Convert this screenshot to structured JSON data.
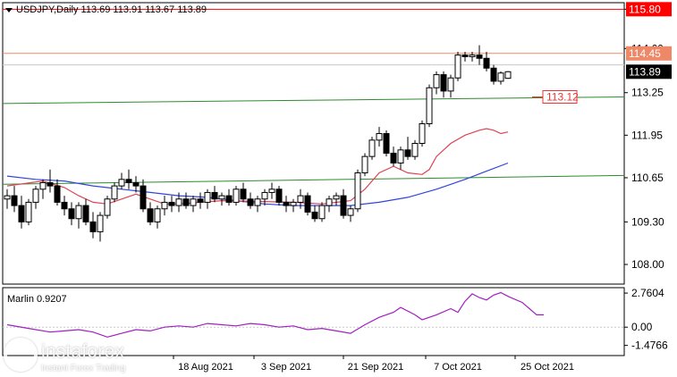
{
  "chart_data": {
    "type": "candlestick",
    "symbol_header": "USDJPY,Daily  113.69 113.91 113.67 113.89",
    "ylim": [
      107.4,
      116.0
    ],
    "y_ticks": [
      "108.00",
      "109.30",
      "110.65",
      "111.95",
      "113.25",
      "114.60",
      "115.80"
    ],
    "x_ticks": [
      "18 Aug 2021",
      "3 Sep 2021",
      "21 Sep 2021",
      "7 Oct 2021",
      "25 Oct 2021"
    ],
    "price_tags": [
      {
        "value": 115.8,
        "label": "115.80",
        "color": "#ff0000"
      },
      {
        "value": 114.45,
        "label": "114.45",
        "color": "#ee8866"
      },
      {
        "value": 113.89,
        "label": "113.89",
        "color": "#000000"
      }
    ],
    "annotation": {
      "value": 113.12,
      "label": "113.12"
    },
    "levels": [
      {
        "name": "resistance",
        "value": 115.8,
        "color": "#ff0000"
      },
      {
        "name": "target",
        "value": 114.45,
        "color": "#ee8866"
      },
      {
        "name": "grey",
        "value": 114.1,
        "color": "#c8c8c8"
      }
    ],
    "trendlines": [
      {
        "from_index": 0,
        "from_value": 112.92,
        "to_index": 70,
        "to_value": 113.12,
        "color": "#2e8b2e"
      },
      {
        "from_index": 0,
        "from_value": 110.45,
        "to_index": 70,
        "to_value": 110.72,
        "color": "#2e8b2e"
      }
    ],
    "candles": [
      [
        110.0,
        110.3,
        109.7,
        110.1
      ],
      [
        110.1,
        110.4,
        109.6,
        109.8
      ],
      [
        109.8,
        110.1,
        109.1,
        109.3
      ],
      [
        109.3,
        110.0,
        109.2,
        109.9
      ],
      [
        109.9,
        110.4,
        109.7,
        110.3
      ],
      [
        110.3,
        110.6,
        110.0,
        110.5
      ],
      [
        110.5,
        110.9,
        110.2,
        110.4
      ],
      [
        110.4,
        110.6,
        109.8,
        109.9
      ],
      [
        109.9,
        110.1,
        109.5,
        109.7
      ],
      [
        109.7,
        109.9,
        109.2,
        109.4
      ],
      [
        109.4,
        109.9,
        109.1,
        109.8
      ],
      [
        109.8,
        110.0,
        109.2,
        109.3
      ],
      [
        109.3,
        109.6,
        108.8,
        109.0
      ],
      [
        109.0,
        109.6,
        108.7,
        109.5
      ],
      [
        109.5,
        110.1,
        109.4,
        110.0
      ],
      [
        110.0,
        110.5,
        109.9,
        110.4
      ],
      [
        110.4,
        110.8,
        110.3,
        110.6
      ],
      [
        110.6,
        110.9,
        110.3,
        110.5
      ],
      [
        110.5,
        110.7,
        110.2,
        110.4
      ],
      [
        110.4,
        110.6,
        109.6,
        109.7
      ],
      [
        109.7,
        109.9,
        109.2,
        109.3
      ],
      [
        109.3,
        109.8,
        109.1,
        109.7
      ],
      [
        109.7,
        110.1,
        109.5,
        109.9
      ],
      [
        109.9,
        110.1,
        109.6,
        109.8
      ],
      [
        109.8,
        110.2,
        109.6,
        110.0
      ],
      [
        110.0,
        110.2,
        109.7,
        109.8
      ],
      [
        109.8,
        110.1,
        109.6,
        110.0
      ],
      [
        110.0,
        110.2,
        109.7,
        109.9
      ],
      [
        109.9,
        110.3,
        109.7,
        110.2
      ],
      [
        110.2,
        110.4,
        109.9,
        110.0
      ],
      [
        110.0,
        110.2,
        109.8,
        110.1
      ],
      [
        110.1,
        110.3,
        109.8,
        109.9
      ],
      [
        109.9,
        110.4,
        109.8,
        110.3
      ],
      [
        110.3,
        110.5,
        109.9,
        110.0
      ],
      [
        110.0,
        110.2,
        109.7,
        109.8
      ],
      [
        109.8,
        110.1,
        109.6,
        110.0
      ],
      [
        110.0,
        110.3,
        109.8,
        110.2
      ],
      [
        110.2,
        110.5,
        110.0,
        110.3
      ],
      [
        110.3,
        110.4,
        109.8,
        109.9
      ],
      [
        109.9,
        110.1,
        109.6,
        109.8
      ],
      [
        109.8,
        110.0,
        109.6,
        109.9
      ],
      [
        109.9,
        110.3,
        109.7,
        110.1
      ],
      [
        110.1,
        110.2,
        109.5,
        109.6
      ],
      [
        109.6,
        109.8,
        109.3,
        109.4
      ],
      [
        109.4,
        109.9,
        109.3,
        109.8
      ],
      [
        109.8,
        110.1,
        109.6,
        110.0
      ],
      [
        110.0,
        110.2,
        109.8,
        110.1
      ],
      [
        110.1,
        110.3,
        109.4,
        109.5
      ],
      [
        109.5,
        109.8,
        109.3,
        109.7
      ],
      [
        109.7,
        110.9,
        109.6,
        110.8
      ],
      [
        110.8,
        111.4,
        110.7,
        111.3
      ],
      [
        111.3,
        111.9,
        111.2,
        111.8
      ],
      [
        111.8,
        112.2,
        111.6,
        112.0
      ],
      [
        112.0,
        112.1,
        111.3,
        111.4
      ],
      [
        111.4,
        111.6,
        111.0,
        111.1
      ],
      [
        111.1,
        111.6,
        110.9,
        111.5
      ],
      [
        111.5,
        111.9,
        111.2,
        111.3
      ],
      [
        111.3,
        111.8,
        111.2,
        111.7
      ],
      [
        111.7,
        112.4,
        111.6,
        112.3
      ],
      [
        112.3,
        113.5,
        112.2,
        113.4
      ],
      [
        113.4,
        113.9,
        113.2,
        113.8
      ],
      [
        113.8,
        113.9,
        113.1,
        113.3
      ],
      [
        113.3,
        113.8,
        113.1,
        113.7
      ],
      [
        113.7,
        114.5,
        113.6,
        114.4
      ],
      [
        114.4,
        114.5,
        114.2,
        114.35
      ],
      [
        114.35,
        114.5,
        114.2,
        114.4
      ],
      [
        114.4,
        114.7,
        114.1,
        114.3
      ],
      [
        114.3,
        114.5,
        113.9,
        114.0
      ],
      [
        114.0,
        114.1,
        113.5,
        113.6
      ],
      [
        113.6,
        113.9,
        113.5,
        113.85
      ],
      [
        113.69,
        113.91,
        113.67,
        113.89
      ]
    ],
    "ma_red": [
      [
        0,
        110.4
      ],
      [
        5,
        110.55
      ],
      [
        8,
        110.35
      ],
      [
        10,
        110.1
      ],
      [
        12,
        109.9
      ],
      [
        14,
        109.85
      ],
      [
        16,
        110.0
      ],
      [
        18,
        110.15
      ],
      [
        20,
        110.0
      ],
      [
        22,
        109.85
      ],
      [
        24,
        109.85
      ],
      [
        30,
        109.95
      ],
      [
        40,
        109.9
      ],
      [
        44,
        109.85
      ],
      [
        48,
        109.95
      ],
      [
        50,
        110.3
      ],
      [
        52,
        110.8
      ],
      [
        54,
        111.0
      ],
      [
        56,
        110.8
      ],
      [
        58,
        110.75
      ],
      [
        59,
        110.9
      ],
      [
        60,
        111.3
      ],
      [
        62,
        111.7
      ],
      [
        64,
        111.95
      ],
      [
        66,
        112.1
      ],
      [
        67,
        112.15
      ],
      [
        68,
        112.1
      ],
      [
        69,
        112.0
      ],
      [
        70,
        112.05
      ]
    ],
    "ma_blue": [
      [
        0,
        110.7
      ],
      [
        4,
        110.6
      ],
      [
        8,
        110.55
      ],
      [
        12,
        110.4
      ],
      [
        16,
        110.3
      ],
      [
        20,
        110.2
      ],
      [
        24,
        110.1
      ],
      [
        28,
        110.05
      ],
      [
        32,
        109.95
      ],
      [
        36,
        109.85
      ],
      [
        40,
        109.8
      ],
      [
        44,
        109.8
      ],
      [
        48,
        109.8
      ],
      [
        52,
        109.9
      ],
      [
        56,
        110.05
      ],
      [
        60,
        110.3
      ],
      [
        64,
        110.6
      ],
      [
        67,
        110.85
      ],
      [
        70,
        111.1
      ]
    ],
    "indicator": {
      "name": "Marlin",
      "value_label": "Marlin 0.9207",
      "ylim": [
        -2.3,
        3.2
      ],
      "ticks": [
        "2.7604",
        "0.00",
        "-1.4766"
      ],
      "values": [
        [
          0,
          0.2
        ],
        [
          3,
          -0.1
        ],
        [
          6,
          -0.4
        ],
        [
          8,
          -0.3
        ],
        [
          10,
          -0.2
        ],
        [
          12,
          -0.4
        ],
        [
          14,
          -0.8
        ],
        [
          16,
          -0.5
        ],
        [
          18,
          -0.2
        ],
        [
          20,
          -0.3
        ],
        [
          22,
          0.0
        ],
        [
          24,
          0.1
        ],
        [
          26,
          0.0
        ],
        [
          28,
          0.3
        ],
        [
          30,
          0.2
        ],
        [
          32,
          0.1
        ],
        [
          34,
          0.3
        ],
        [
          36,
          0.2
        ],
        [
          38,
          0.0
        ],
        [
          40,
          0.1
        ],
        [
          42,
          -0.2
        ],
        [
          44,
          -0.1
        ],
        [
          46,
          -0.3
        ],
        [
          48,
          -0.5
        ],
        [
          50,
          0.2
        ],
        [
          52,
          0.8
        ],
        [
          54,
          1.2
        ],
        [
          55,
          1.6
        ],
        [
          57,
          1.0
        ],
        [
          58,
          0.6
        ],
        [
          60,
          1.0
        ],
        [
          62,
          1.5
        ],
        [
          63,
          1.2
        ],
        [
          64,
          2.1
        ],
        [
          65,
          2.7
        ],
        [
          66,
          2.4
        ],
        [
          67,
          2.2
        ],
        [
          68,
          2.6
        ],
        [
          69,
          2.8
        ],
        [
          70,
          2.5
        ],
        [
          72,
          2.0
        ],
        [
          73,
          1.5
        ],
        [
          74,
          1.0
        ],
        [
          75,
          1.0
        ]
      ]
    }
  },
  "watermark": {
    "name": "instaforex",
    "tagline": "Instant Forex Trading"
  }
}
